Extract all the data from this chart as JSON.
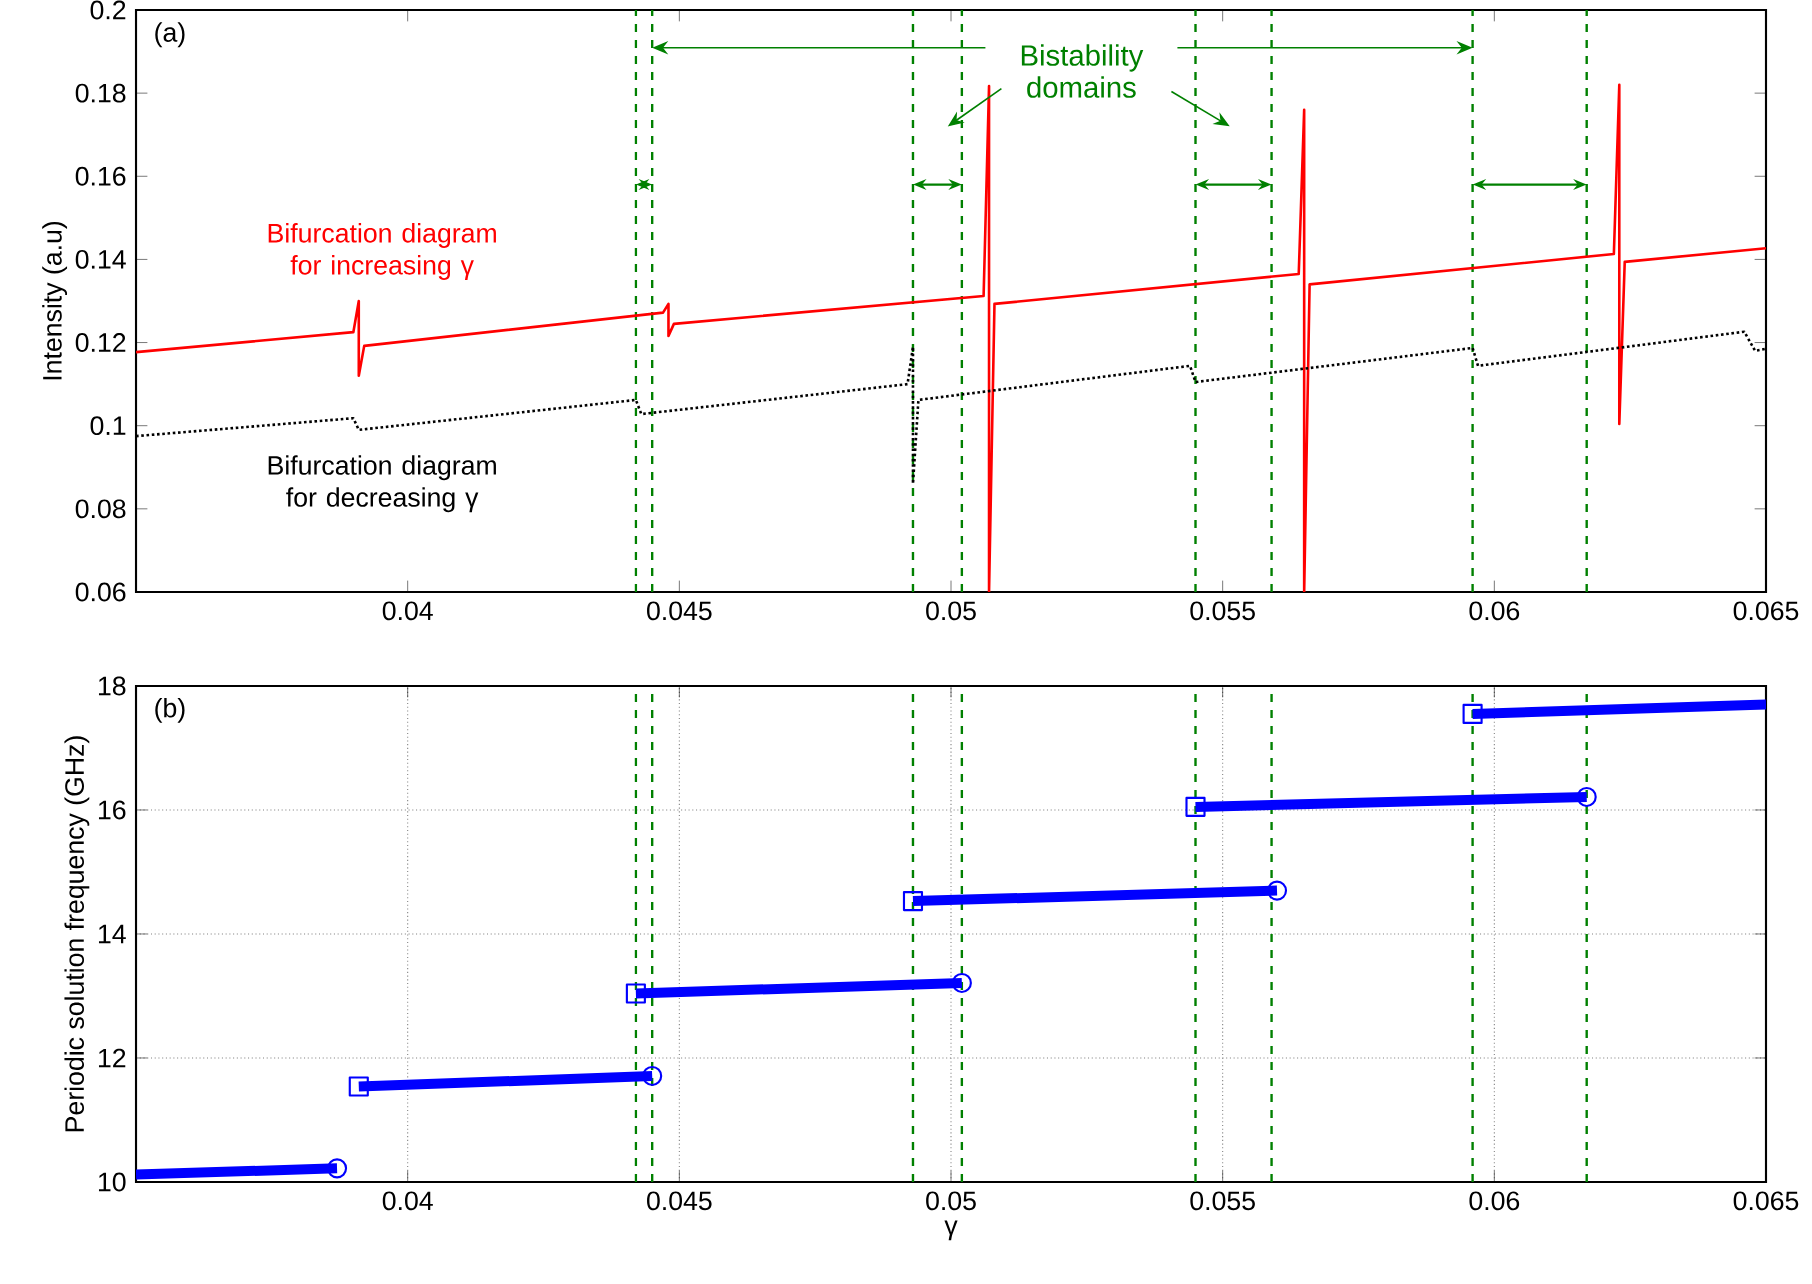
{
  "chart_data": [
    {
      "type": "line",
      "ylabel": "Intensity (a.u)",
      "xlim": [
        0.035,
        0.065
      ],
      "ylim": [
        0.06,
        0.2
      ],
      "xticks": [
        0.04,
        0.045,
        0.05,
        0.055,
        0.06,
        0.065
      ],
      "yticks": [
        0.06,
        0.08,
        0.1,
        0.12,
        0.14,
        0.16,
        0.18,
        0.2
      ],
      "series": [
        {
          "name": "Bifurcation diagram for increasing γ",
          "color": "#ff0000",
          "line_style": "solid",
          "x": [
            0.035,
            0.039,
            0.0391,
            0.0391,
            0.0392,
            0.0447,
            0.0448,
            0.0448,
            0.0449,
            0.0506,
            0.0507,
            0.0507,
            0.0508,
            0.0564,
            0.0565,
            0.0565,
            0.0566,
            0.0622,
            0.0623,
            0.0623,
            0.0624,
            0.065
          ],
          "values": [
            0.1177,
            0.1225,
            0.13,
            0.112,
            0.1192,
            0.1272,
            0.1293,
            0.1216,
            0.1245,
            0.1312,
            0.1817,
            0.06,
            0.1293,
            0.1365,
            0.176,
            0.06,
            0.134,
            0.1413,
            0.182,
            0.1004,
            0.1394,
            0.1427
          ]
        },
        {
          "name": "Bifurcation diagram for decreasing γ",
          "color": "#000000",
          "line_style": "dotted",
          "x": [
            0.035,
            0.039,
            0.0391,
            0.0442,
            0.0443,
            0.0492,
            0.0493,
            0.0493,
            0.0494,
            0.0544,
            0.0545,
            0.0596,
            0.0597,
            0.0646,
            0.0648,
            0.065
          ],
          "values": [
            0.0975,
            0.1018,
            0.099,
            0.1062,
            0.1028,
            0.11,
            0.119,
            0.086,
            0.1062,
            0.1144,
            0.1105,
            0.1187,
            0.1144,
            0.1226,
            0.118,
            0.1185
          ]
        }
      ],
      "ref_lines": [
        {
          "axis": "x",
          "value": 0.0442,
          "color": "#008000",
          "line_style": "dashed"
        },
        {
          "axis": "x",
          "value": 0.0445,
          "color": "#008000",
          "line_style": "dashed"
        },
        {
          "axis": "x",
          "value": 0.0493,
          "color": "#008000",
          "line_style": "dashed"
        },
        {
          "axis": "x",
          "value": 0.0502,
          "color": "#008000",
          "line_style": "dashed"
        },
        {
          "axis": "x",
          "value": 0.0545,
          "color": "#008000",
          "line_style": "dashed"
        },
        {
          "axis": "x",
          "value": 0.0559,
          "color": "#008000",
          "line_style": "dashed"
        },
        {
          "axis": "x",
          "value": 0.0596,
          "color": "#008000",
          "line_style": "dashed"
        },
        {
          "axis": "x",
          "value": 0.0617,
          "color": "#008000",
          "line_style": "dashed"
        }
      ],
      "annotations": [
        "(a)",
        "Bistability domains"
      ]
    },
    {
      "type": "line",
      "xlabel": "γ",
      "ylabel": "Periodic solution frequency (GHz)",
      "xlim": [
        0.035,
        0.065
      ],
      "ylim": [
        10,
        18
      ],
      "xticks": [
        0.04,
        0.045,
        0.05,
        0.055,
        0.06,
        0.065
      ],
      "yticks": [
        10,
        12,
        14,
        16,
        18
      ],
      "grid": true,
      "series": [
        {
          "type": "line",
          "color": "#0000ff",
          "marker": "none",
          "x": [
            0.035,
            0.0387
          ],
          "values": [
            10.12,
            10.22
          ]
        },
        {
          "type": "line",
          "color": "#0000ff",
          "marker": "none",
          "x": [
            0.0391,
            0.0445
          ],
          "values": [
            11.54,
            11.71
          ]
        },
        {
          "type": "line",
          "color": "#0000ff",
          "marker": "none",
          "x": [
            0.0442,
            0.0502
          ],
          "values": [
            13.04,
            13.21
          ]
        },
        {
          "type": "line",
          "color": "#0000ff",
          "marker": "none",
          "x": [
            0.0493,
            0.056
          ],
          "values": [
            14.53,
            14.7
          ]
        },
        {
          "type": "line",
          "color": "#0000ff",
          "marker": "none",
          "x": [
            0.0545,
            0.0617
          ],
          "values": [
            16.05,
            16.21
          ]
        },
        {
          "type": "line",
          "color": "#0000ff",
          "marker": "none",
          "x": [
            0.0596,
            0.065
          ],
          "values": [
            17.55,
            17.7
          ]
        },
        {
          "type": "scatter",
          "color": "#0000ff",
          "marker": "square",
          "x": [
            0.0391,
            0.0442,
            0.0493,
            0.0545,
            0.0596
          ],
          "values": [
            11.54,
            13.04,
            14.53,
            16.05,
            17.55
          ]
        },
        {
          "type": "scatter",
          "color": "#0000ff",
          "marker": "circle",
          "x": [
            0.0387,
            0.0445,
            0.0502,
            0.056,
            0.0617
          ],
          "values": [
            10.22,
            11.71,
            13.21,
            14.7,
            16.21
          ]
        }
      ],
      "ref_lines": [
        {
          "axis": "x",
          "value": 0.0442,
          "color": "#008000",
          "line_style": "dashed"
        },
        {
          "axis": "x",
          "value": 0.0445,
          "color": "#008000",
          "line_style": "dashed"
        },
        {
          "axis": "x",
          "value": 0.0493,
          "color": "#008000",
          "line_style": "dashed"
        },
        {
          "axis": "x",
          "value": 0.0502,
          "color": "#008000",
          "line_style": "dashed"
        },
        {
          "axis": "x",
          "value": 0.0545,
          "color": "#008000",
          "line_style": "dashed"
        },
        {
          "axis": "x",
          "value": 0.0559,
          "color": "#008000",
          "line_style": "dashed"
        },
        {
          "axis": "x",
          "value": 0.0596,
          "color": "#008000",
          "line_style": "dashed"
        },
        {
          "axis": "x",
          "value": 0.0617,
          "color": "#008000",
          "line_style": "dashed"
        }
      ],
      "annotations": [
        "(b)"
      ]
    }
  ]
}
